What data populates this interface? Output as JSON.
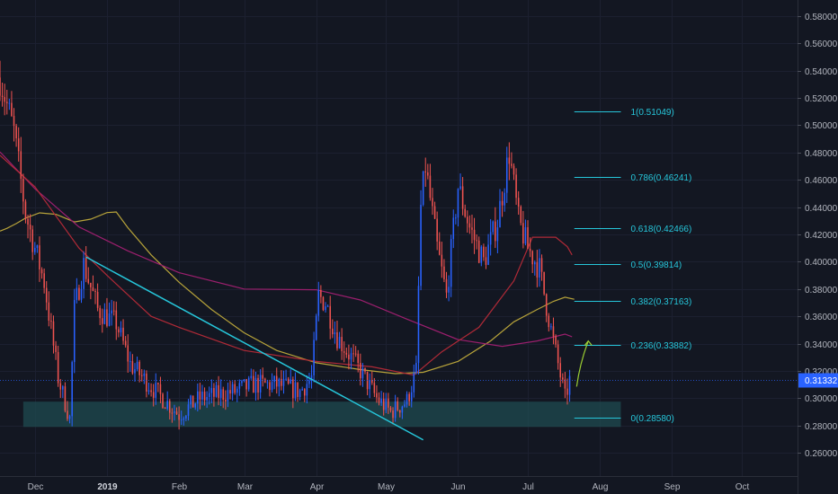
{
  "chart_data": {
    "type": "candlestick",
    "y_axis": {
      "range": [
        0.243,
        0.5918
      ],
      "ticks": [
        "0.58000",
        "0.56000",
        "0.54000",
        "0.52000",
        "0.50000",
        "0.48000",
        "0.46000",
        "0.44000",
        "0.42000",
        "0.40000",
        "0.38000",
        "0.36000",
        "0.34000",
        "0.32000",
        "0.30000",
        "0.28000",
        "0.26000"
      ],
      "scale": "linear",
      "position": "right"
    },
    "x_axis": {
      "range": [
        "2018-11-16",
        "2019-10-25"
      ],
      "ticks": [
        {
          "date": "2018-12-01",
          "label": "Dec",
          "bold": false
        },
        {
          "date": "2019-01-01",
          "label": "2019",
          "bold": true
        },
        {
          "date": "2019-02-01",
          "label": "Feb",
          "bold": false
        },
        {
          "date": "2019-03-01",
          "label": "Mar",
          "bold": false
        },
        {
          "date": "2019-04-01",
          "label": "Apr",
          "bold": false
        },
        {
          "date": "2019-05-01",
          "label": "May",
          "bold": false
        },
        {
          "date": "2019-06-01",
          "label": "Jun",
          "bold": false
        },
        {
          "date": "2019-07-01",
          "label": "Jul",
          "bold": false
        },
        {
          "date": "2019-08-01",
          "label": "Aug",
          "bold": false
        },
        {
          "date": "2019-09-01",
          "label": "Sep",
          "bold": false
        },
        {
          "date": "2019-10-01",
          "label": "Oct",
          "bold": false
        }
      ]
    },
    "current_price": {
      "value": 0.31332,
      "label": "0.31332"
    },
    "fibonacci": {
      "start_date": "2019-07-21",
      "end_date": "2019-08-10",
      "levels": [
        {
          "value": 0.51049,
          "label": "1(0.51049)"
        },
        {
          "value": 0.46241,
          "label": "0.786(0.46241)"
        },
        {
          "value": 0.42466,
          "label": "0.618(0.42466)"
        },
        {
          "value": 0.39814,
          "label": "0.5(0.39814)"
        },
        {
          "value": 0.37163,
          "label": "0.382(0.37163)"
        },
        {
          "value": 0.33882,
          "label": "0.236(0.33882)"
        },
        {
          "value": 0.2858,
          "label": "0(0.28580)"
        }
      ]
    },
    "support_zone": {
      "start_date": "2018-11-26",
      "end_date": "2019-08-10",
      "low": 0.279,
      "high": 0.2975
    },
    "trendline": {
      "start": {
        "date": "2018-12-23",
        "value": 0.4035
      },
      "end": {
        "date": "2019-05-17",
        "value": 0.2695
      }
    },
    "projection_arrow": {
      "start": {
        "date": "2019-07-22",
        "value": 0.3085
      },
      "end": {
        "date": "2019-07-27",
        "value": 0.342
      }
    },
    "series": [
      {
        "kind": "ma",
        "color": "#b7a33a",
        "points": [
          [
            "2018-11-16",
            0.4225
          ],
          [
            "2018-11-19",
            0.4245
          ],
          [
            "2018-11-23",
            0.428
          ],
          [
            "2018-11-27",
            0.432
          ],
          [
            "2018-12-03",
            0.4358
          ],
          [
            "2018-12-10",
            0.4348
          ],
          [
            "2018-12-18",
            0.4292
          ],
          [
            "2018-12-25",
            0.4312
          ],
          [
            "2019-01-01",
            0.436
          ],
          [
            "2019-01-05",
            0.4365
          ],
          [
            "2019-01-10",
            0.425
          ],
          [
            "2019-01-20",
            0.405
          ],
          [
            "2019-02-01",
            0.385
          ],
          [
            "2019-02-15",
            0.365
          ],
          [
            "2019-03-01",
            0.348
          ],
          [
            "2019-03-15",
            0.335
          ],
          [
            "2019-04-01",
            0.326
          ],
          [
            "2019-04-20",
            0.321
          ],
          [
            "2019-05-05",
            0.318
          ],
          [
            "2019-05-17",
            0.319
          ],
          [
            "2019-06-01",
            0.327
          ],
          [
            "2019-06-15",
            0.342
          ],
          [
            "2019-06-25",
            0.356
          ],
          [
            "2019-07-05",
            0.365
          ],
          [
            "2019-07-12",
            0.371
          ],
          [
            "2019-07-17",
            0.374
          ],
          [
            "2019-07-21",
            0.3725
          ]
        ]
      },
      {
        "kind": "ma",
        "color": "#9c1f6e",
        "points": [
          [
            "2018-11-16",
            0.4805
          ],
          [
            "2018-12-01",
            0.4535
          ],
          [
            "2018-12-20",
            0.4255
          ],
          [
            "2019-01-10",
            0.408
          ],
          [
            "2019-02-01",
            0.392
          ],
          [
            "2019-03-01",
            0.38
          ],
          [
            "2019-04-01",
            0.3795
          ],
          [
            "2019-04-20",
            0.372
          ],
          [
            "2019-05-10",
            0.358
          ],
          [
            "2019-06-01",
            0.343
          ],
          [
            "2019-06-20",
            0.338
          ],
          [
            "2019-07-05",
            0.342
          ],
          [
            "2019-07-17",
            0.347
          ],
          [
            "2019-07-20",
            0.345
          ]
        ]
      },
      {
        "kind": "ma",
        "color": "#b02a37",
        "points": [
          [
            "2018-11-16",
            0.478
          ],
          [
            "2018-12-01",
            0.455
          ],
          [
            "2018-12-20",
            0.41
          ],
          [
            "2019-01-01",
            0.39
          ],
          [
            "2019-01-20",
            0.36
          ],
          [
            "2019-02-01",
            0.352
          ],
          [
            "2019-03-01",
            0.335
          ],
          [
            "2019-04-01",
            0.327
          ],
          [
            "2019-04-25",
            0.323
          ],
          [
            "2019-05-13",
            0.317
          ],
          [
            "2019-05-25",
            0.334
          ],
          [
            "2019-06-10",
            0.352
          ],
          [
            "2019-06-25",
            0.386
          ],
          [
            "2019-07-03",
            0.418
          ],
          [
            "2019-07-13",
            0.418
          ],
          [
            "2019-07-18",
            0.411
          ],
          [
            "2019-07-20",
            0.405
          ]
        ]
      },
      {
        "kind": "candles",
        "bull_color": "#2962ff",
        "bear_color": "#ef5350",
        "waypoints": [
          [
            "2018-11-16",
            0.535
          ],
          [
            "2018-11-22",
            0.495
          ],
          [
            "2018-11-27",
            0.435
          ],
          [
            "2018-12-05",
            0.385
          ],
          [
            "2018-12-11",
            0.315
          ],
          [
            "2018-12-16",
            0.285
          ],
          [
            "2018-12-18",
            0.365
          ],
          [
            "2018-12-22",
            0.398
          ],
          [
            "2018-12-28",
            0.365
          ],
          [
            "2019-01-05",
            0.355
          ],
          [
            "2019-01-11",
            0.325
          ],
          [
            "2019-01-22",
            0.305
          ],
          [
            "2019-02-01",
            0.288
          ],
          [
            "2019-02-10",
            0.3
          ],
          [
            "2019-02-25",
            0.305
          ],
          [
            "2019-03-05",
            0.31
          ],
          [
            "2019-03-15",
            0.31
          ],
          [
            "2019-03-25",
            0.305
          ],
          [
            "2019-03-30",
            0.315
          ],
          [
            "2019-04-02",
            0.375
          ],
          [
            "2019-04-05",
            0.37
          ],
          [
            "2019-04-10",
            0.345
          ],
          [
            "2019-04-20",
            0.32
          ],
          [
            "2019-04-27",
            0.3
          ],
          [
            "2019-05-03",
            0.29
          ],
          [
            "2019-05-10",
            0.298
          ],
          [
            "2019-05-14",
            0.32
          ],
          [
            "2019-05-16",
            0.44
          ],
          [
            "2019-05-18",
            0.47
          ],
          [
            "2019-05-23",
            0.41
          ],
          [
            "2019-05-27",
            0.375
          ],
          [
            "2019-06-01",
            0.455
          ],
          [
            "2019-06-06",
            0.425
          ],
          [
            "2019-06-12",
            0.4
          ],
          [
            "2019-06-18",
            0.43
          ],
          [
            "2019-06-23",
            0.48
          ],
          [
            "2019-06-27",
            0.43
          ],
          [
            "2019-07-01",
            0.41
          ],
          [
            "2019-07-06",
            0.395
          ],
          [
            "2019-07-11",
            0.35
          ],
          [
            "2019-07-14",
            0.325
          ],
          [
            "2019-07-17",
            0.3
          ],
          [
            "2019-07-19",
            0.313
          ]
        ]
      }
    ]
  }
}
